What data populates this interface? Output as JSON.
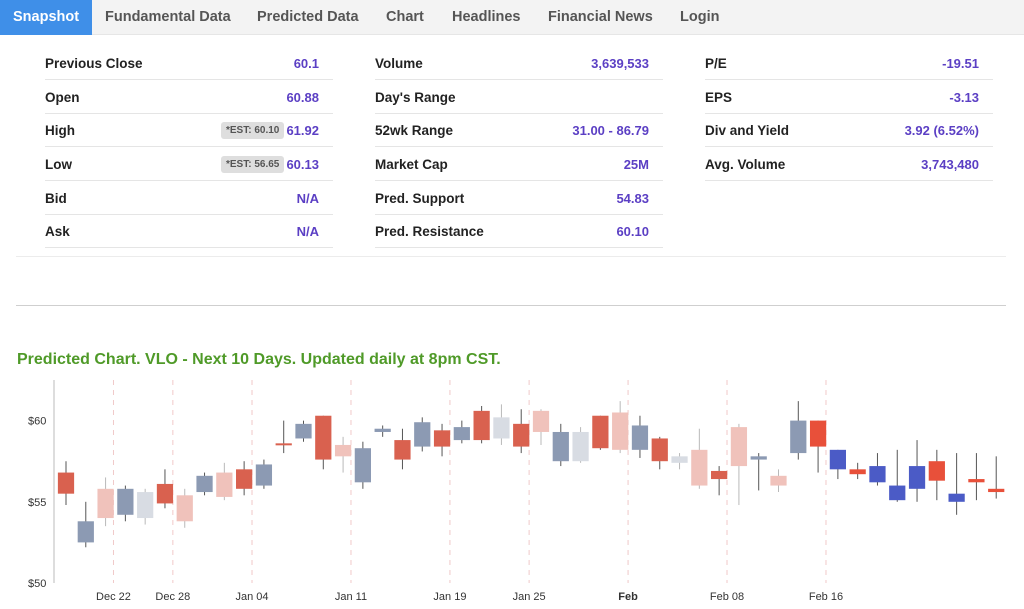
{
  "tabs": [
    {
      "label": "Snapshot",
      "active": true
    },
    {
      "label": "Fundamental Data"
    },
    {
      "label": "Predicted Data"
    },
    {
      "label": "Chart"
    },
    {
      "label": "Headlines"
    },
    {
      "label": "Financial News"
    },
    {
      "label": "Login"
    }
  ],
  "stats": {
    "col1": [
      {
        "label": "Previous Close",
        "value": "60.1"
      },
      {
        "label": "Open",
        "value": "60.88"
      },
      {
        "label": "High",
        "value": "61.92",
        "est": "*EST: 60.10"
      },
      {
        "label": "Low",
        "value": "60.13",
        "est": "*EST: 56.65"
      },
      {
        "label": "Bid",
        "value": "N/A"
      },
      {
        "label": "Ask",
        "value": "N/A"
      }
    ],
    "col2": [
      {
        "label": "Volume",
        "value": "3,639,533"
      },
      {
        "label": "Day's Range",
        "value": ""
      },
      {
        "label": "52wk Range",
        "value": "31.00 - 86.79"
      },
      {
        "label": "Market Cap",
        "value": "25M"
      },
      {
        "label": "Pred. Support",
        "value": "54.83"
      },
      {
        "label": "Pred. Resistance",
        "value": "60.10"
      }
    ],
    "col3": [
      {
        "label": "P/E",
        "value": "-19.51"
      },
      {
        "label": "EPS",
        "value": "-3.13"
      },
      {
        "label": "Div and Yield",
        "value": "3.92 (6.52%)"
      },
      {
        "label": "Avg. Volume",
        "value": "3,743,480"
      }
    ]
  },
  "chart_title": "Predicted Chart. VLO - Next 10 Days. Updated daily at 8pm CST.",
  "chart_data": {
    "type": "candlestick",
    "ylim": [
      50,
      62.5
    ],
    "yticks": [
      {
        "value": 60,
        "label": "$60"
      },
      {
        "value": 55,
        "label": "$55"
      },
      {
        "value": 50,
        "label": "$50"
      }
    ],
    "xlabels": [
      {
        "label": "Dec 22",
        "index": 2
      },
      {
        "label": "Dec 28",
        "index": 5
      },
      {
        "label": "Jan 04",
        "index": 9
      },
      {
        "label": "Jan 11",
        "index": 14
      },
      {
        "label": "Jan 19",
        "index": 19
      },
      {
        "label": "Jan 25",
        "index": 23
      },
      {
        "label": "Feb",
        "index": 28,
        "bold": true
      },
      {
        "label": "Feb 08",
        "index": 33
      },
      {
        "label": "Feb 16",
        "index": 38
      }
    ],
    "colors": {
      "hist_up": "#8c9ab3",
      "hist_down": "#d9614f",
      "ghost_up": "#d8dce3",
      "ghost_down": "#f0c2bb",
      "pred_up": "#4b5bc6",
      "pred_down": "#e8503a",
      "wick": "#555555"
    },
    "candles": [
      {
        "o": 56.8,
        "c": 55.5,
        "h": 57.5,
        "l": 54.8,
        "kind": "hist_down"
      },
      {
        "o": 53.8,
        "c": 52.5,
        "h": 55.0,
        "l": 52.2,
        "kind": "hist_up"
      },
      {
        "o": 54.0,
        "c": 55.8,
        "h": 56.5,
        "l": 53.5,
        "kind": "ghost_down"
      },
      {
        "o": 54.2,
        "c": 55.8,
        "h": 56.0,
        "l": 53.8,
        "kind": "hist_up"
      },
      {
        "o": 54.0,
        "c": 55.6,
        "h": 55.8,
        "l": 53.6,
        "kind": "ghost_up"
      },
      {
        "o": 56.1,
        "c": 54.9,
        "h": 57.0,
        "l": 54.6,
        "kind": "hist_down"
      },
      {
        "o": 55.4,
        "c": 53.8,
        "h": 55.8,
        "l": 53.4,
        "kind": "ghost_down"
      },
      {
        "o": 55.6,
        "c": 56.6,
        "h": 56.8,
        "l": 55.4,
        "kind": "hist_up"
      },
      {
        "o": 55.3,
        "c": 56.8,
        "h": 57.4,
        "l": 55.1,
        "kind": "ghost_down"
      },
      {
        "o": 57.0,
        "c": 55.8,
        "h": 57.5,
        "l": 55.4,
        "kind": "hist_down"
      },
      {
        "o": 56.0,
        "c": 57.3,
        "h": 57.6,
        "l": 55.8,
        "kind": "hist_up"
      },
      {
        "o": 58.6,
        "c": 58.5,
        "h": 60.0,
        "l": 58.0,
        "kind": "hist_down"
      },
      {
        "o": 58.9,
        "c": 59.8,
        "h": 60.0,
        "l": 58.7,
        "kind": "hist_up"
      },
      {
        "o": 60.3,
        "c": 57.6,
        "h": 60.3,
        "l": 57.0,
        "kind": "hist_down"
      },
      {
        "o": 57.8,
        "c": 58.5,
        "h": 59.0,
        "l": 56.8,
        "kind": "ghost_down"
      },
      {
        "o": 56.2,
        "c": 58.3,
        "h": 58.7,
        "l": 55.8,
        "kind": "hist_up"
      },
      {
        "o": 59.3,
        "c": 59.5,
        "h": 59.7,
        "l": 59.0,
        "kind": "hist_up"
      },
      {
        "o": 58.8,
        "c": 57.6,
        "h": 59.5,
        "l": 57.0,
        "kind": "hist_down"
      },
      {
        "o": 58.4,
        "c": 59.9,
        "h": 60.2,
        "l": 58.1,
        "kind": "hist_up"
      },
      {
        "o": 59.4,
        "c": 58.4,
        "h": 59.8,
        "l": 57.8,
        "kind": "hist_down"
      },
      {
        "o": 58.8,
        "c": 59.6,
        "h": 60.0,
        "l": 58.6,
        "kind": "hist_up"
      },
      {
        "o": 60.6,
        "c": 58.8,
        "h": 60.9,
        "l": 58.6,
        "kind": "hist_down"
      },
      {
        "o": 58.9,
        "c": 60.2,
        "h": 61.0,
        "l": 58.5,
        "kind": "ghost_up"
      },
      {
        "o": 59.8,
        "c": 58.4,
        "h": 60.7,
        "l": 58.0,
        "kind": "hist_down"
      },
      {
        "o": 60.6,
        "c": 59.3,
        "h": 60.7,
        "l": 58.5,
        "kind": "ghost_down"
      },
      {
        "o": 57.5,
        "c": 59.3,
        "h": 59.8,
        "l": 57.2,
        "kind": "hist_up"
      },
      {
        "o": 57.5,
        "c": 59.3,
        "h": 59.6,
        "l": 57.4,
        "kind": "ghost_up"
      },
      {
        "o": 60.3,
        "c": 58.3,
        "h": 60.3,
        "l": 58.2,
        "kind": "hist_down"
      },
      {
        "o": 60.5,
        "c": 58.2,
        "h": 61.2,
        "l": 58.0,
        "kind": "ghost_down"
      },
      {
        "o": 58.2,
        "c": 59.7,
        "h": 60.3,
        "l": 57.7,
        "kind": "hist_up"
      },
      {
        "o": 58.9,
        "c": 57.5,
        "h": 59.0,
        "l": 57.0,
        "kind": "hist_down"
      },
      {
        "o": 57.4,
        "c": 57.8,
        "h": 58.0,
        "l": 57.0,
        "kind": "ghost_up"
      },
      {
        "o": 56.0,
        "c": 58.2,
        "h": 59.5,
        "l": 55.8,
        "kind": "ghost_down"
      },
      {
        "o": 56.9,
        "c": 56.4,
        "h": 57.2,
        "l": 55.4,
        "kind": "hist_down"
      },
      {
        "o": 59.6,
        "c": 57.2,
        "h": 59.8,
        "l": 54.8,
        "kind": "ghost_down"
      },
      {
        "o": 57.6,
        "c": 57.8,
        "h": 58.0,
        "l": 55.7,
        "kind": "hist_up"
      },
      {
        "o": 56.0,
        "c": 56.6,
        "h": 57.0,
        "l": 55.6,
        "kind": "ghost_down"
      },
      {
        "o": 58.0,
        "c": 60.0,
        "h": 61.2,
        "l": 57.6,
        "kind": "hist_up"
      },
      {
        "o": 60.0,
        "c": 58.4,
        "h": 60.0,
        "l": 56.8,
        "kind": "pred_down"
      },
      {
        "o": 57.0,
        "c": 58.2,
        "h": 58.2,
        "l": 56.4,
        "kind": "pred_up"
      },
      {
        "o": 57.0,
        "c": 56.7,
        "h": 57.4,
        "l": 56.4,
        "kind": "pred_down"
      },
      {
        "o": 56.2,
        "c": 57.2,
        "h": 58.0,
        "l": 56.0,
        "kind": "pred_up"
      },
      {
        "o": 55.1,
        "c": 56.0,
        "h": 58.2,
        "l": 55.0,
        "kind": "pred_up"
      },
      {
        "o": 55.8,
        "c": 57.2,
        "h": 58.8,
        "l": 55.0,
        "kind": "pred_up"
      },
      {
        "o": 57.5,
        "c": 56.3,
        "h": 58.2,
        "l": 55.1,
        "kind": "pred_down"
      },
      {
        "o": 55.0,
        "c": 55.5,
        "h": 58.0,
        "l": 54.2,
        "kind": "pred_up"
      },
      {
        "o": 56.4,
        "c": 56.2,
        "h": 58.0,
        "l": 55.1,
        "kind": "pred_down"
      },
      {
        "o": 55.8,
        "c": 55.6,
        "h": 57.8,
        "l": 55.2,
        "kind": "pred_down"
      }
    ]
  }
}
